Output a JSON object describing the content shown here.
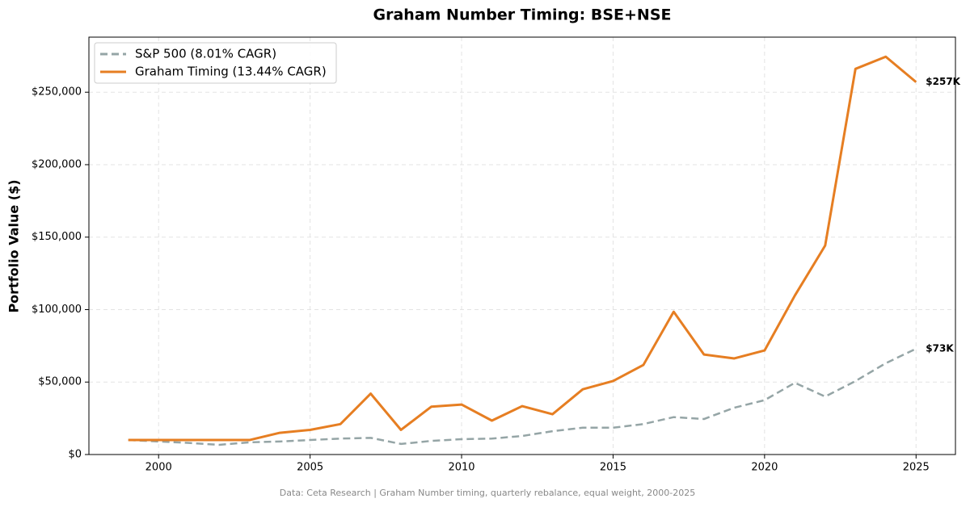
{
  "chart_data": {
    "type": "line",
    "title": "Graham Number Timing: BSE+NSE",
    "ylabel": "Portfolio Value ($)",
    "footnote": "Data: Ceta Research | Graham Number timing, quarterly rebalance, equal weight, 2000-2025",
    "x": [
      1999,
      2000,
      2001,
      2002,
      2003,
      2004,
      2005,
      2006,
      2007,
      2008,
      2009,
      2010,
      2011,
      2012,
      2013,
      2014,
      2015,
      2016,
      2017,
      2018,
      2019,
      2020,
      2021,
      2022,
      2023,
      2024,
      2025
    ],
    "series": [
      {
        "name": "S&P 500 (8.01% CAGR)",
        "color": "#95a5a6",
        "linestyle": "dashed",
        "values": [
          10000,
          9000,
          8000,
          6700,
          8400,
          9000,
          10000,
          11000,
          11500,
          7300,
          9400,
          10600,
          11000,
          12800,
          16100,
          18500,
          18500,
          21000,
          25800,
          24500,
          32300,
          37500,
          49500,
          40000,
          50700,
          63000,
          73000
        ],
        "value_labels": [
          null,
          null,
          null,
          null,
          null,
          null,
          null,
          null,
          null,
          null,
          null,
          null,
          null,
          null,
          null,
          null,
          null,
          null,
          null,
          null,
          null,
          null,
          null,
          null,
          null,
          null,
          "$73K"
        ]
      },
      {
        "name": "Graham Timing (13.44% CAGR)",
        "color": "#e67e22",
        "linestyle": "solid",
        "values": [
          10000,
          10000,
          10000,
          10000,
          10000,
          15000,
          17000,
          21000,
          42000,
          17000,
          33000,
          34500,
          23400,
          33400,
          27800,
          45000,
          50700,
          61800,
          98500,
          69000,
          66300,
          71800,
          109700,
          144200,
          266100,
          274500,
          257000
        ],
        "value_labels": [
          null,
          null,
          null,
          null,
          null,
          null,
          null,
          null,
          null,
          null,
          null,
          null,
          null,
          null,
          null,
          null,
          null,
          null,
          null,
          null,
          null,
          null,
          null,
          null,
          null,
          null,
          "$257K"
        ]
      }
    ],
    "xlim": [
      1997.7,
      2026.3
    ],
    "ylim": [
      0,
      288000
    ],
    "xticks": [
      2000,
      2005,
      2010,
      2015,
      2020,
      2025
    ],
    "yticks": [
      {
        "value": 0,
        "label": "$0"
      },
      {
        "value": 50000,
        "label": "$50,000"
      },
      {
        "value": 100000,
        "label": "$100,000"
      },
      {
        "value": 150000,
        "label": "$150,000"
      },
      {
        "value": 200000,
        "label": "$200,000"
      },
      {
        "value": 250000,
        "label": "$250,000"
      }
    ],
    "grid": true,
    "legend": "upper left"
  }
}
